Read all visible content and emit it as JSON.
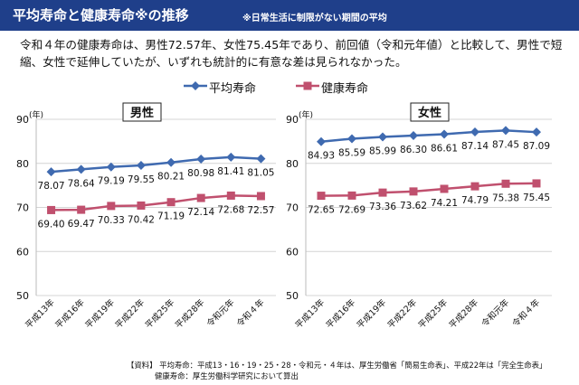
{
  "header": {
    "title": "平均寿命と健康寿命※の推移",
    "note": "※日常生活に制限がない期間の平均"
  },
  "description": "令和４年の健康寿命は、男性72.57年、女性75.45年であり、前回値（令和元年値）と比較して、男性で短縮、女性で延伸していたが、いずれも統計的に有意な差は見られなかった。",
  "legend": {
    "avg_label": "平均寿命",
    "health_label": "健康寿命"
  },
  "colors": {
    "avg": "#3f6ab0",
    "health": "#c0506e",
    "header": "#1f3f8a"
  },
  "chart_data": [
    {
      "type": "line",
      "title": "男性",
      "ylabel": "(年)",
      "ylim": [
        50,
        90
      ],
      "yticks": [
        50,
        60,
        70,
        80,
        90
      ],
      "categories": [
        "平成13年",
        "平成16年",
        "平成19年",
        "平成22年",
        "平成25年",
        "平成28年",
        "令和元年",
        "令和４年"
      ],
      "series": [
        {
          "name": "平均寿命",
          "values": [
            78.07,
            78.64,
            79.19,
            79.55,
            80.21,
            80.98,
            81.41,
            81.05
          ]
        },
        {
          "name": "健康寿命",
          "values": [
            69.4,
            69.47,
            70.33,
            70.42,
            71.19,
            72.14,
            72.68,
            72.57
          ]
        }
      ]
    },
    {
      "type": "line",
      "title": "女性",
      "ylabel": "(年)",
      "ylim": [
        50,
        90
      ],
      "yticks": [
        50,
        60,
        70,
        80,
        90
      ],
      "categories": [
        "平成13年",
        "平成16年",
        "平成19年",
        "平成22年",
        "平成25年",
        "平成28年",
        "令和元年",
        "令和４年"
      ],
      "series": [
        {
          "name": "平均寿命",
          "values": [
            84.93,
            85.59,
            85.99,
            86.3,
            86.61,
            87.14,
            87.45,
            87.09
          ]
        },
        {
          "name": "健康寿命",
          "values": [
            72.65,
            72.69,
            73.36,
            73.62,
            74.21,
            74.79,
            75.38,
            75.45
          ]
        }
      ]
    }
  ],
  "footer": {
    "line1": "【資料】 平均寿命：平成13・16・19・25・28・令和元・４年は、厚生労働省「簡易生命表」、平成22年は「完全生命表」",
    "line2": "健康寿命：厚生労働科学研究において算出"
  }
}
